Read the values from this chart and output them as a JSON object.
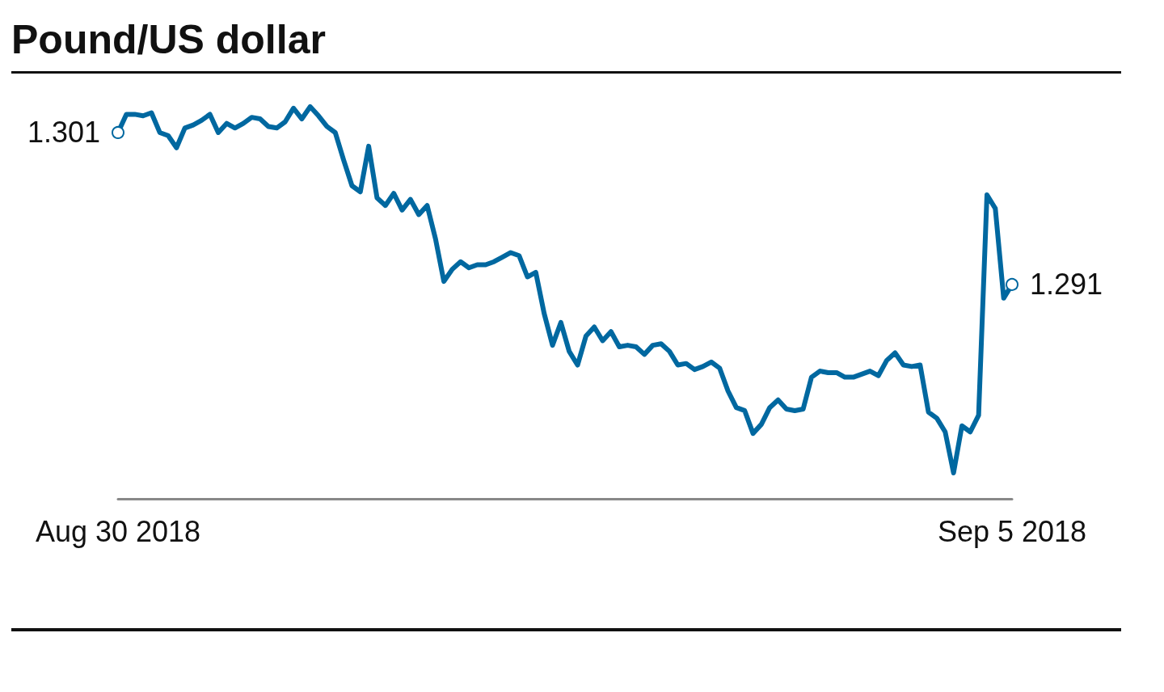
{
  "chart_data": {
    "type": "line",
    "title": "Pound/US dollar",
    "categories": [
      "Aug 30 2018",
      null,
      null,
      null,
      null,
      null,
      null,
      null,
      null,
      null,
      null,
      null,
      null,
      null,
      null,
      null,
      null,
      null,
      null,
      null,
      null,
      null,
      null,
      null,
      null,
      null,
      null,
      null,
      null,
      null,
      null,
      null,
      null,
      null,
      null,
      null,
      null,
      null,
      null,
      null,
      null,
      null,
      null,
      null,
      null,
      null,
      null,
      null,
      null,
      null,
      null,
      null,
      null,
      null,
      null,
      null,
      null,
      null,
      null,
      null,
      null,
      null,
      null,
      null,
      null,
      null,
      null,
      null,
      null,
      null,
      null,
      null,
      null,
      null,
      null,
      null,
      null,
      null,
      null,
      null,
      null,
      null,
      null,
      null,
      null,
      null,
      null,
      null,
      null,
      null,
      null,
      null,
      null,
      null,
      null,
      null,
      null,
      null,
      null,
      null,
      null,
      null,
      null,
      null,
      null,
      null,
      null,
      "Sep 5 2018"
    ],
    "series": [
      {
        "color": "#0068a0",
        "values": [
          1.301,
          1.3022,
          1.3022,
          1.3021,
          1.3023,
          1.301,
          1.3008,
          1.3,
          1.3013,
          1.3015,
          1.3018,
          1.3022,
          1.301,
          1.3016,
          1.3013,
          1.3016,
          1.302,
          1.3019,
          1.3014,
          1.3013,
          1.3017,
          1.3026,
          1.3019,
          1.3027,
          1.3021,
          1.3014,
          1.301,
          1.2992,
          1.2975,
          1.2971,
          1.3001,
          1.2967,
          1.2962,
          1.297,
          1.2959,
          1.2966,
          1.2956,
          1.2962,
          1.294,
          1.2912,
          1.292,
          1.2925,
          1.2921,
          1.2923,
          1.2923,
          1.2925,
          1.2928,
          1.2931,
          1.2929,
          1.2915,
          1.2918,
          1.2891,
          1.287,
          1.2885,
          1.2866,
          1.2857,
          1.2876,
          1.2882,
          1.2873,
          1.2879,
          1.2869,
          1.287,
          1.2869,
          1.2864,
          1.287,
          1.2871,
          1.2866,
          1.2857,
          1.2858,
          1.2854,
          1.2856,
          1.2859,
          1.2855,
          1.284,
          1.2829,
          1.2827,
          1.2812,
          1.2818,
          1.2829,
          1.2834,
          1.2828,
          1.2827,
          1.2828,
          1.2849,
          1.2853,
          1.2852,
          1.2852,
          1.2849,
          1.2849,
          1.2851,
          1.2853,
          1.285,
          1.286,
          1.2865,
          1.2857,
          1.2856,
          1.2857,
          1.2826,
          1.2822,
          1.2813,
          1.2786,
          1.2817,
          1.2813,
          1.2824,
          1.2969,
          1.296,
          1.2901,
          1.291
        ],
        "value_labels": [
          "1.301",
          null,
          null,
          null,
          null,
          null,
          null,
          null,
          null,
          null,
          null,
          null,
          null,
          null,
          null,
          null,
          null,
          null,
          null,
          null,
          null,
          null,
          null,
          null,
          null,
          null,
          null,
          null,
          null,
          null,
          null,
          null,
          null,
          null,
          null,
          null,
          null,
          null,
          null,
          null,
          null,
          null,
          null,
          null,
          null,
          null,
          null,
          null,
          null,
          null,
          null,
          null,
          null,
          null,
          null,
          null,
          null,
          null,
          null,
          null,
          null,
          null,
          null,
          null,
          null,
          null,
          null,
          null,
          null,
          null,
          null,
          null,
          null,
          null,
          null,
          null,
          null,
          null,
          null,
          null,
          null,
          null,
          null,
          null,
          null,
          null,
          null,
          null,
          null,
          null,
          null,
          null,
          null,
          null,
          null,
          null,
          null,
          null,
          null,
          null,
          null,
          null,
          null,
          null,
          null,
          null,
          null,
          "1.291"
        ]
      }
    ],
    "grid": false,
    "tick_labels": "x"
  }
}
